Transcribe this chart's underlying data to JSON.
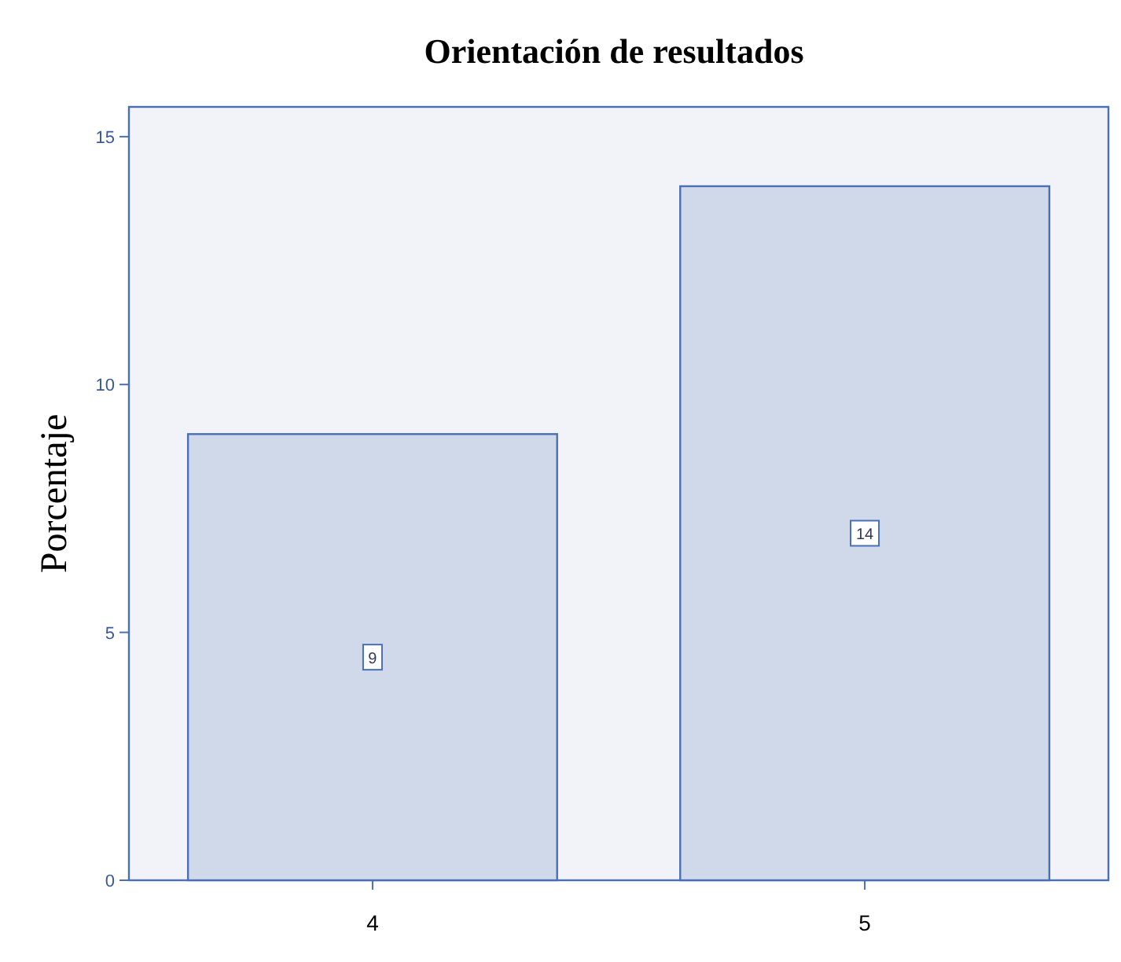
{
  "chart_data": {
    "type": "bar",
    "title": "Orientación de resultados",
    "ylabel": "Porcentaje",
    "categories": [
      "4",
      "5"
    ],
    "values": [
      9,
      14
    ],
    "color": "#d0d9ea",
    "ylim": [
      0,
      15.6
    ],
    "yticks": [
      0,
      5,
      10,
      15
    ],
    "grid": false,
    "data_labels": true
  }
}
